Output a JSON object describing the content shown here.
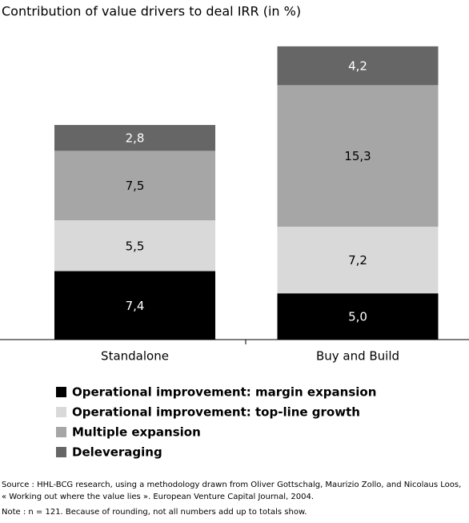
{
  "chart_data": {
    "type": "stacked_bar",
    "title": "Contribution of value drivers to deal IRR (in %)",
    "categories": [
      "Standalone",
      "Buy and Build"
    ],
    "series": [
      {
        "name": "Operational improvement: margin expansion",
        "color": "#000000",
        "values": [
          7.4,
          5.0
        ],
        "value_labels": [
          "7,4",
          "5,0"
        ]
      },
      {
        "name": "Operational improvement: top-line growth",
        "color": "#d9d9d9",
        "values": [
          5.5,
          7.2
        ],
        "value_labels": [
          "5,5",
          "7,2"
        ]
      },
      {
        "name": "Multiple expansion",
        "color": "#a6a6a6",
        "values": [
          7.5,
          15.3
        ],
        "value_labels": [
          "7,5",
          "15,3"
        ]
      },
      {
        "name": "Deleveraging",
        "color": "#666666",
        "values": [
          2.8,
          4.2
        ],
        "value_labels": [
          "2,8",
          "4,2"
        ]
      }
    ],
    "notes": [
      "Source :  HHL-BCG research, using a methodology drawn from Oliver Gottschalg, Maurizio Zollo, and Nicolaus Loos,",
      "« Working out where the value lies ». European Venture Capital Journal, 2004.",
      "Note : n = 121. Because of rounding, not all numbers add up to totals show."
    ]
  }
}
